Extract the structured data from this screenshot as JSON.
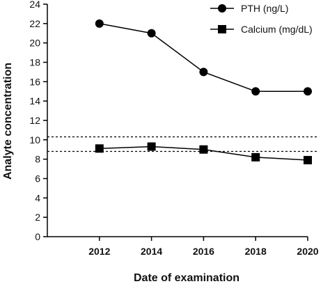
{
  "chart_data": {
    "type": "line",
    "xlabel": "Date of examination",
    "ylabel": "Analyte concentration",
    "x": [
      2012,
      2014,
      2016,
      2018,
      2020
    ],
    "xlim": [
      2010,
      2020
    ],
    "ylim": [
      0,
      24
    ],
    "yticks": [
      0,
      2,
      4,
      6,
      8,
      10,
      12,
      14,
      16,
      18,
      20,
      22,
      24
    ],
    "series": [
      {
        "name": "PTH (ng/L)",
        "marker": "circle",
        "values": [
          22,
          21,
          17,
          15,
          15
        ]
      },
      {
        "name": "Calcium (mg/dL)",
        "marker": "square",
        "values": [
          9.1,
          9.3,
          9.0,
          8.2,
          7.9
        ]
      }
    ],
    "reference_lines": [
      10.3,
      8.8
    ],
    "legend_position": "top-right",
    "grid": false
  }
}
